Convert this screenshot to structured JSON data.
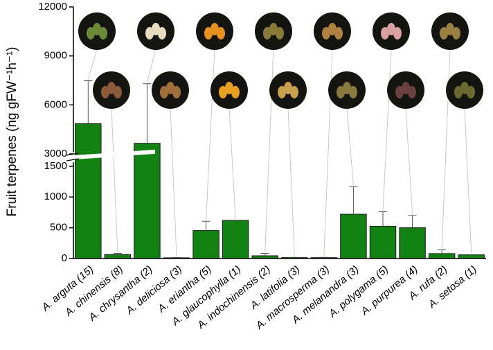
{
  "chart_data": {
    "type": "bar",
    "y_label": "Fruit terpenes (ng gFW⁻¹h⁻¹)",
    "categories": [
      "A. arguta (15)",
      "A. chinensis (8)",
      "A. chrysantha (2)",
      "A. deliciosa (3)",
      "A. eriantha (5)",
      "A. glaucophylla (1)",
      "A. indochinensis (2)",
      "A. latifolia (3)",
      "A. macrosperma (3)",
      "A. melanandra (3)",
      "A. polygama (5)",
      "A. purpurea (4)",
      "A. rufa (2)",
      "A. setosa (1)"
    ],
    "values": [
      4850,
      65,
      3650,
      12,
      455,
      620,
      45,
      15,
      15,
      720,
      525,
      500,
      80,
      60
    ],
    "errors": [
      2630,
      20,
      3650,
      5,
      150,
      null,
      40,
      5,
      5,
      450,
      235,
      200,
      65,
      null
    ],
    "color": "#128212",
    "ylim": [
      0,
      12000
    ],
    "ybreak": [
      1600,
      3000
    ],
    "yticks": [
      0,
      500,
      1000,
      1500,
      3000,
      6000,
      9000,
      12000
    ]
  }
}
